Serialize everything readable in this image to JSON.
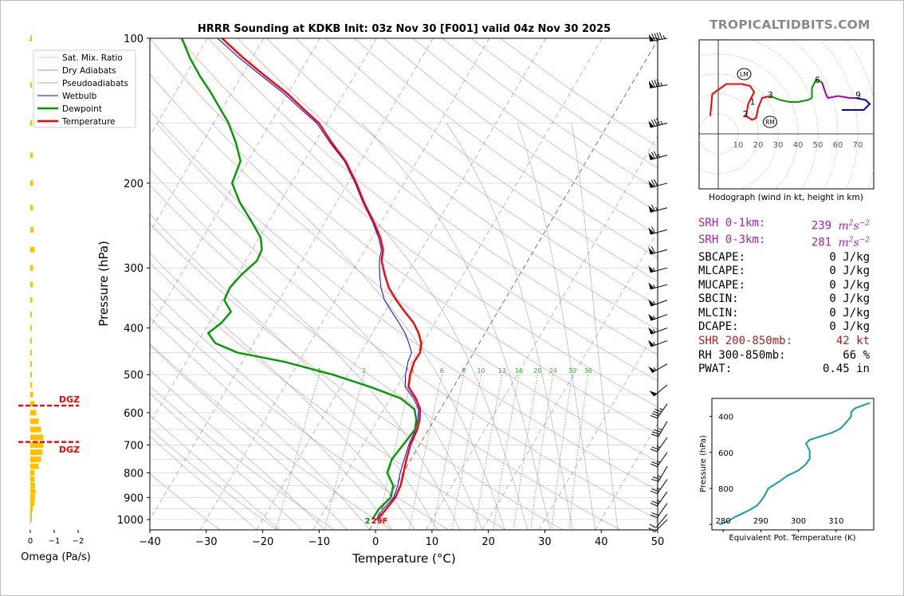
{
  "brand": "TROPICALTIDBITS.COM",
  "colors": {
    "temperature": "#ff0000",
    "dewpoint": "#009900",
    "wetbulb": "#0000ff",
    "dry_adiabat": "#d06060",
    "pseudoadiabat": "#8888cc",
    "mixing_ratio": "#33aa33",
    "omega": "#ffc000",
    "dgz": "#ff0000",
    "hodo_0_1": "#ff0000",
    "hodo_1_3": "#009900",
    "hodo_3_6": "#009900",
    "hodo_6_9": "#aa00aa",
    "hodo_9_plus": "#0000dd",
    "theta_e": "#1a9aaa",
    "srh": "#aa22aa",
    "shr": "#aa2222"
  },
  "chart_data": [
    {
      "type": "line",
      "chart": "skew-t",
      "title": "HRRR Sounding at KDKB Init: 03z Nov 30 [F001] valid 04z Nov 30 2025",
      "xlabel": "Temperature (°C)",
      "ylabel": "Pressure (hPa)",
      "xlim": [
        -40,
        50
      ],
      "ylim": [
        1050,
        100
      ],
      "x_ticks": [
        "−40",
        "−30",
        "−20",
        "−10",
        "0",
        "10",
        "20",
        "30",
        "40",
        "50"
      ],
      "y_ticks": [
        "100",
        "200",
        "300",
        "400",
        "500",
        "600",
        "700",
        "800",
        "900",
        "1000"
      ],
      "legend": [
        "Sat. Mix. Ratio",
        "Dry Adiabats",
        "Pseudoadiabats",
        "Wetbulb",
        "Dewpoint",
        "Temperature"
      ],
      "surface_label": "29F",
      "surface_dewpoint_label": "2",
      "mixing_ratio_labels": [
        "1",
        "2",
        "4",
        "6",
        "8",
        "10",
        "13",
        "16",
        "20",
        "24",
        "30",
        "36"
      ],
      "series": [
        {
          "name": "Temperature",
          "points": [
            [
              0.4,
              1000
            ],
            [
              0.8,
              950
            ],
            [
              1.2,
              900
            ],
            [
              0.9,
              850
            ],
            [
              0.1,
              800
            ],
            [
              -0.8,
              750
            ],
            [
              -1.6,
              700
            ],
            [
              -2.0,
              650
            ],
            [
              -2.6,
              620
            ],
            [
              -3.6,
              590
            ],
            [
              -5.5,
              560
            ],
            [
              -8.0,
              530
            ],
            [
              -9.0,
              500
            ],
            [
              -9.6,
              470
            ],
            [
              -9.5,
              450
            ],
            [
              -10.3,
              430
            ],
            [
              -11.8,
              410
            ],
            [
              -13.8,
              390
            ],
            [
              -16.5,
              370
            ],
            [
              -19.2,
              350
            ],
            [
              -21.8,
              330
            ],
            [
              -23.9,
              310
            ],
            [
              -25.9,
              290
            ],
            [
              -26.8,
              275
            ],
            [
              -28.5,
              260
            ],
            [
              -31.5,
              240
            ],
            [
              -35.0,
              220
            ],
            [
              -38.5,
              200
            ],
            [
              -42.7,
              180
            ],
            [
              -47.0,
              165
            ],
            [
              -51.4,
              150
            ],
            [
              -55.7,
              140
            ],
            [
              -60.2,
              130
            ],
            [
              -65.7,
              120
            ],
            [
              -71.5,
              110
            ],
            [
              -77.4,
              100
            ]
          ]
        },
        {
          "name": "Wetbulb",
          "points": [
            [
              0.1,
              1000
            ],
            [
              0.3,
              950
            ],
            [
              0.9,
              900
            ],
            [
              0.4,
              850
            ],
            [
              -0.5,
              800
            ],
            [
              -1.2,
              750
            ],
            [
              -1.9,
              700
            ],
            [
              -2.3,
              650
            ],
            [
              -2.9,
              620
            ],
            [
              -3.9,
              590
            ],
            [
              -5.9,
              560
            ],
            [
              -8.6,
              530
            ],
            [
              -9.8,
              500
            ],
            [
              -10.7,
              470
            ],
            [
              -11.0,
              450
            ],
            [
              -12.5,
              430
            ],
            [
              -14.2,
              410
            ],
            [
              -16.4,
              390
            ],
            [
              -18.8,
              370
            ],
            [
              -21.3,
              350
            ],
            [
              -23.2,
              330
            ],
            [
              -24.8,
              310
            ],
            [
              -26.3,
              290
            ],
            [
              -27.1,
              275
            ],
            [
              -28.8,
              260
            ],
            [
              -31.7,
              240
            ],
            [
              -35.2,
              220
            ],
            [
              -38.7,
              200
            ],
            [
              -42.9,
              180
            ],
            [
              -47.3,
              165
            ],
            [
              -51.8,
              150
            ],
            [
              -56.2,
              140
            ],
            [
              -60.8,
              130
            ],
            [
              -66.3,
              120
            ],
            [
              -72.2,
              110
            ],
            [
              -78.2,
              100
            ]
          ]
        },
        {
          "name": "Dewpoint",
          "points": [
            [
              -0.6,
              1000
            ],
            [
              -0.5,
              950
            ],
            [
              0.4,
              900
            ],
            [
              -0.4,
              850
            ],
            [
              -2.8,
              800
            ],
            [
              -3.4,
              750
            ],
            [
              -2.9,
              700
            ],
            [
              -2.4,
              650
            ],
            [
              -3.2,
              620
            ],
            [
              -4.6,
              590
            ],
            [
              -8.2,
              560
            ],
            [
              -14.8,
              530
            ],
            [
              -22.7,
              500
            ],
            [
              -32.7,
              470
            ],
            [
              -41.9,
              450
            ],
            [
              -46.8,
              430
            ],
            [
              -49.1,
              410
            ],
            [
              -47.8,
              390
            ],
            [
              -47.3,
              370
            ],
            [
              -49.7,
              350
            ],
            [
              -50.0,
              330
            ],
            [
              -49.3,
              310
            ],
            [
              -48.0,
              290
            ],
            [
              -48.3,
              275
            ],
            [
              -49.7,
              260
            ],
            [
              -53.1,
              240
            ],
            [
              -57.0,
              220
            ],
            [
              -60.5,
              200
            ],
            [
              -61.3,
              180
            ],
            [
              -64.0,
              165
            ],
            [
              -67.4,
              150
            ],
            [
              -70.4,
              140
            ],
            [
              -73.6,
              130
            ],
            [
              -77.3,
              120
            ],
            [
              -81.0,
              110
            ],
            [
              -84.5,
              100
            ]
          ]
        }
      ]
    },
    {
      "type": "bar",
      "chart": "omega profile",
      "xlabel": "Omega (Pa/s)",
      "x_ticks": [
        "0",
        "−1",
        "−2"
      ],
      "xlim": [
        0,
        -2.5
      ],
      "dgz_label": "DGZ",
      "dgz_levels_hpa": [
        580,
        690
      ],
      "points": [
        [
          1000,
          -0.05
        ],
        [
          975,
          -0.06
        ],
        [
          950,
          -0.1
        ],
        [
          925,
          -0.18
        ],
        [
          900,
          -0.2
        ],
        [
          875,
          -0.22
        ],
        [
          850,
          -0.2
        ],
        [
          825,
          -0.18
        ],
        [
          800,
          -0.17
        ],
        [
          775,
          -0.35
        ],
        [
          750,
          -0.45
        ],
        [
          725,
          -0.5
        ],
        [
          700,
          -0.55
        ],
        [
          675,
          -0.55
        ],
        [
          650,
          -0.45
        ],
        [
          625,
          -0.35
        ],
        [
          600,
          -0.25
        ],
        [
          575,
          -0.18
        ],
        [
          550,
          -0.12
        ],
        [
          525,
          -0.08
        ],
        [
          500,
          -0.05
        ],
        [
          475,
          -0.05
        ],
        [
          450,
          -0.03
        ],
        [
          425,
          -0.02
        ],
        [
          400,
          -0.02
        ],
        [
          375,
          -0.05
        ],
        [
          350,
          -0.08
        ],
        [
          325,
          -0.1
        ],
        [
          300,
          -0.12
        ],
        [
          275,
          -0.18
        ],
        [
          250,
          -0.14
        ],
        [
          225,
          -0.1
        ],
        [
          200,
          -0.12
        ],
        [
          175,
          -0.1
        ],
        [
          150,
          -0.08
        ],
        [
          125,
          -0.07
        ],
        [
          100,
          -0.02
        ]
      ]
    },
    {
      "type": "line",
      "chart": "hodograph",
      "caption": "Hodograph (wind in kt, height in km)",
      "ring_labels": [
        "10",
        "20",
        "30",
        "40",
        "50",
        "60",
        "70"
      ],
      "height_labels": [
        "1",
        "2",
        "3",
        "6",
        "9"
      ],
      "markers": [
        "LM",
        "RM"
      ],
      "lm": [
        13,
        30
      ],
      "rm": [
        26,
        6
      ],
      "segments": [
        {
          "name": "0-1km",
          "points": [
            [
              -4,
              9
            ],
            [
              -3,
              20
            ],
            [
              4,
              25
            ],
            [
              12,
              25
            ],
            [
              16,
              24
            ],
            [
              18,
              21
            ],
            [
              15,
              15
            ],
            [
              14,
              9
            ],
            [
              17,
              7
            ],
            [
              19,
              8
            ],
            [
              20,
              13
            ],
            [
              22,
              18
            ],
            [
              26,
              19
            ]
          ]
        },
        {
          "name": "1-3km",
          "points": [
            [
              26,
              19
            ],
            [
              31,
              17
            ],
            [
              36,
              16
            ],
            [
              40,
              16
            ],
            [
              45,
              17
            ],
            [
              47,
              18
            ]
          ]
        },
        {
          "name": "3-6km",
          "points": [
            [
              47,
              18
            ],
            [
              47,
              23
            ],
            [
              49,
              27
            ],
            [
              52,
              26
            ]
          ]
        },
        {
          "name": "6-9km",
          "points": [
            [
              52,
              26
            ],
            [
              54,
              20
            ],
            [
              55,
              18
            ],
            [
              60,
              19
            ],
            [
              66,
              18
            ],
            [
              69,
              18
            ]
          ]
        },
        {
          "name": "9+km",
          "points": [
            [
              69,
              18
            ],
            [
              74,
              17
            ],
            [
              76,
              15
            ],
            [
              73,
              12
            ],
            [
              70,
              12
            ],
            [
              62,
              12
            ]
          ]
        }
      ]
    },
    {
      "type": "line",
      "chart": "theta-e profile",
      "xlabel": "Equivalent Pot. Temperature (K)",
      "ylabel": "Pressure (hPa)",
      "xlim": [
        277,
        320
      ],
      "ylim": [
        1030,
        300
      ],
      "x_ticks": [
        "280",
        "290",
        "300",
        "310"
      ],
      "y_ticks": [
        "400",
        "600",
        "800"
      ],
      "points": [
        [
          279,
          1000
        ],
        [
          281,
          985
        ],
        [
          283,
          960
        ],
        [
          285,
          940
        ],
        [
          287,
          920
        ],
        [
          289,
          895
        ],
        [
          290,
          870
        ],
        [
          291,
          840
        ],
        [
          292,
          800
        ],
        [
          295,
          760
        ],
        [
          297,
          730
        ],
        [
          300,
          700
        ],
        [
          302,
          665
        ],
        [
          303,
          635
        ],
        [
          303,
          590
        ],
        [
          302,
          550
        ],
        [
          303,
          530
        ],
        [
          306,
          510
        ],
        [
          309,
          490
        ],
        [
          311,
          470
        ],
        [
          312,
          450
        ],
        [
          313,
          425
        ],
        [
          314,
          400
        ],
        [
          314,
          375
        ],
        [
          315,
          355
        ],
        [
          317,
          340
        ],
        [
          319,
          325
        ]
      ]
    }
  ],
  "stats": [
    {
      "label": "SRH 0-1km:",
      "value": "239",
      "unit": "m2s-2",
      "color": "#aa22aa"
    },
    {
      "label": "SRH 0-3km:",
      "value": "281",
      "unit": "m2s-2",
      "color": "#aa22aa"
    },
    {
      "label": "SBCAPE:",
      "value": "0 J/kg",
      "color": "#000000"
    },
    {
      "label": "MLCAPE:",
      "value": "0 J/kg",
      "color": "#000000"
    },
    {
      "label": "MUCAPE:",
      "value": "0 J/kg",
      "color": "#000000"
    },
    {
      "label": "SBCIN:",
      "value": "0 J/kg",
      "color": "#000000"
    },
    {
      "label": "MLCIN:",
      "value": "0 J/kg",
      "color": "#000000"
    },
    {
      "label": "DCAPE:",
      "value": "0 J/kg",
      "color": "#000000"
    },
    {
      "label": "SHR 200-850mb:",
      "value": "42 kt",
      "color": "#aa2222"
    },
    {
      "label": "RH 300-850mb:",
      "value": "66 %",
      "color": "#000000"
    },
    {
      "label": "PWAT:",
      "value": "0.45 in",
      "color": "#000000"
    }
  ],
  "wind_barbs": [
    {
      "p": 100,
      "spd": 95,
      "dir": 260
    },
    {
      "p": 125,
      "spd": 85,
      "dir": 260
    },
    {
      "p": 150,
      "spd": 85,
      "dir": 255
    },
    {
      "p": 175,
      "spd": 75,
      "dir": 255
    },
    {
      "p": 200,
      "spd": 70,
      "dir": 255
    },
    {
      "p": 225,
      "spd": 65,
      "dir": 255
    },
    {
      "p": 250,
      "spd": 60,
      "dir": 255
    },
    {
      "p": 275,
      "spd": 60,
      "dir": 255
    },
    {
      "p": 300,
      "spd": 55,
      "dir": 255
    },
    {
      "p": 325,
      "spd": 55,
      "dir": 255
    },
    {
      "p": 350,
      "spd": 55,
      "dir": 250
    },
    {
      "p": 375,
      "spd": 55,
      "dir": 250
    },
    {
      "p": 400,
      "spd": 55,
      "dir": 250
    },
    {
      "p": 425,
      "spd": 55,
      "dir": 250
    },
    {
      "p": 475,
      "spd": 55,
      "dir": 240
    },
    {
      "p": 525,
      "spd": 50,
      "dir": 230
    },
    {
      "p": 575,
      "spd": 45,
      "dir": 215
    },
    {
      "p": 625,
      "spd": 35,
      "dir": 210
    },
    {
      "p": 675,
      "spd": 25,
      "dir": 215
    },
    {
      "p": 725,
      "spd": 25,
      "dir": 215
    },
    {
      "p": 775,
      "spd": 25,
      "dir": 210
    },
    {
      "p": 825,
      "spd": 25,
      "dir": 215
    },
    {
      "p": 875,
      "spd": 25,
      "dir": 215
    },
    {
      "p": 925,
      "spd": 20,
      "dir": 215
    },
    {
      "p": 975,
      "spd": 10,
      "dir": 220
    },
    {
      "p": 1000,
      "spd": 10,
      "dir": 225
    }
  ]
}
